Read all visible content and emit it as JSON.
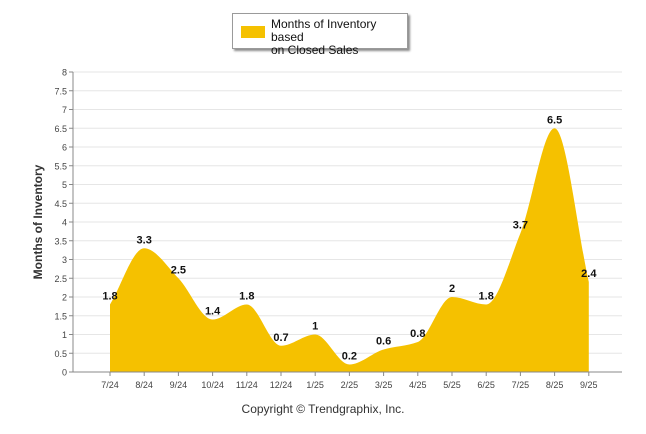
{
  "chart_data": {
    "type": "area",
    "title": "",
    "xlabel": "",
    "ylabel": "Months of Inventory",
    "categories": [
      "7/24",
      "8/24",
      "9/24",
      "10/24",
      "11/24",
      "12/24",
      "1/25",
      "2/25",
      "3/25",
      "4/25",
      "5/25",
      "6/25",
      "7/25",
      "8/25",
      "9/25"
    ],
    "series": [
      {
        "name": "Months of Inventory based on Closed Sales",
        "values": [
          1.8,
          3.3,
          2.5,
          1.4,
          1.8,
          0.7,
          1,
          0.2,
          0.6,
          0.8,
          2,
          1.8,
          3.7,
          6.5,
          2.4
        ],
        "data_labels": [
          "1.8",
          "3.3",
          "2.5",
          "1.4",
          "1.8",
          "0.7",
          "1",
          "0.2",
          "0.6",
          "0.8",
          "2",
          "1.8",
          "3.7",
          "6.5",
          "2.4"
        ],
        "color": "#F5C100"
      }
    ],
    "ylim": [
      0,
      8
    ],
    "yticks": [
      "0",
      "0.5",
      "1",
      "1.5",
      "2",
      "2.5",
      "3",
      "3.5",
      "4",
      "4.5",
      "5",
      "5.5",
      "6",
      "6.5",
      "7",
      "7.5",
      "8"
    ],
    "ytick_values": [
      0,
      0.5,
      1,
      1.5,
      2,
      2.5,
      3,
      3.5,
      4,
      4.5,
      5,
      5.5,
      6,
      6.5,
      7,
      7.5,
      8
    ],
    "grid": true,
    "legend": "top-center"
  },
  "legend": {
    "label_line1": "Months of Inventory based",
    "label_line2": "on Closed Sales"
  },
  "footer": {
    "copyright": "Copyright © Trendgraphix, Inc."
  },
  "colors": {
    "grid": "#e6e6e6",
    "axis": "#888888",
    "tick_text": "#444444",
    "label_text": "#111111"
  }
}
